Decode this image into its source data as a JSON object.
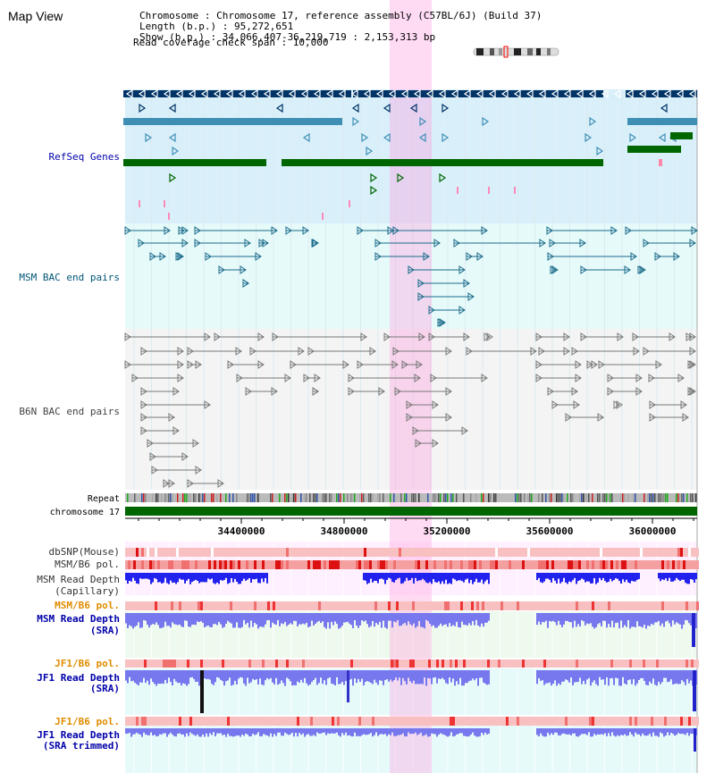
{
  "header": {
    "title": "Map View",
    "info": [
      {
        "label": "Chromosome        ",
        "value": "Chromosome 17, reference assembly (C57BL/6J) (Build 37)"
      },
      {
        "label": "Length (b.p.)     ",
        "value": "95,272,651"
      },
      {
        "label": "  Show (b.p.)     ",
        "value": "34,066,407-36,219,719 : 2,153,313 bp"
      },
      {
        "label": "Read coverage check span",
        "value": "10,000"
      }
    ]
  },
  "tracks": {
    "refseq_label": "RefSeq Genes",
    "msm_bac_label": "MSM BAC end pairs",
    "b6n_bac_label": "B6N BAC end pairs",
    "repeat_label": "Repeat",
    "chromosome_label": "chromosome 17",
    "dbsnp_label": "dbSNP(Mouse)",
    "msm_b6_pol_label": "MSM/B6 pol.",
    "msm_read_depth_cap_label_1": "MSM Read Depth",
    "msm_read_depth_cap_label_2": "(Capillary)",
    "msm_b6_pol_sra_label": "MSM/B6 pol.",
    "msm_read_depth_sra_label_1": "MSM Read Depth",
    "msm_read_depth_sra_label_2": "(SRA)",
    "jf1_b6_pol_label": "JF1/B6 pol.",
    "jf1_read_depth_label_1": "JF1 Read Depth",
    "jf1_read_depth_label_2": "(SRA)",
    "jf1_b6_pol_trim_label": "JF1/B6 pol.",
    "jf1_read_depth_trim_label_1": "JF1 Read Depth",
    "jf1_read_depth_trim_label_2": "(SRA trimmed)"
  },
  "axis": {
    "ticks": [
      "34400000",
      "34800000",
      "35200000",
      "35600000",
      "36000000"
    ],
    "range": [
      34066407,
      36219719
    ]
  },
  "colors": {
    "refseq_dark_blue": "#003366",
    "refseq_mid_blue": "#3f8fb5",
    "refseq_green": "#006600",
    "refseq_bg": "#d9f0fa",
    "msm_bg": "#e6fafa",
    "msm_line": "#1a6b8a",
    "b6n_bg": "#f4f4f4",
    "highlight": "#ffccee",
    "chrom_bar": "#006600",
    "label_blue": "#0000aa",
    "label_orange": "#e08c00",
    "depth_blue": "#4444ff"
  }
}
